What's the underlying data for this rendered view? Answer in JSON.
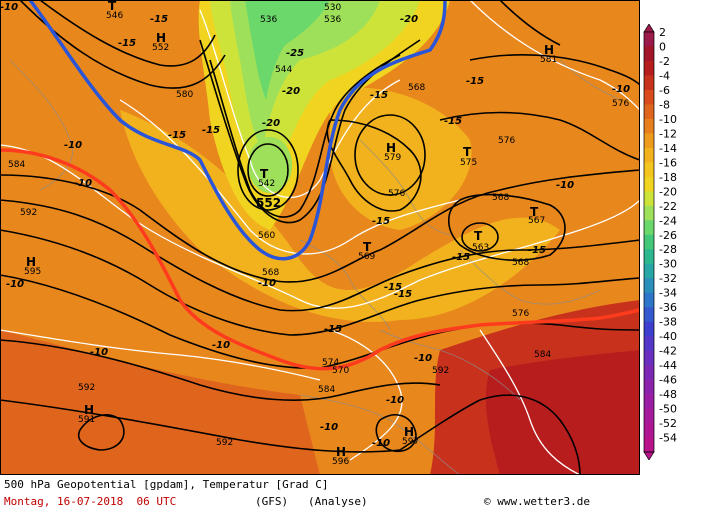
{
  "title": "500 hPa Geopotential [gpdam], Temperatur [Grad C]",
  "date_line": "Montag, 16-07-2018  06 UTC",
  "model_line": "(GFS)   (Analyse)",
  "credit": "www.wetter3.de",
  "legend": {
    "values": [
      "2",
      "0",
      "-2",
      "-4",
      "-6",
      "-8",
      "-10",
      "-12",
      "-14",
      "-16",
      "-18",
      "-20",
      "-22",
      "-24",
      "-26",
      "-28",
      "-30",
      "-32",
      "-34",
      "-36",
      "-38",
      "-40",
      "-42",
      "-44",
      "-46",
      "-48",
      "-50",
      "-52",
      "-54"
    ],
    "colors": [
      "#9c1a4a",
      "#a3162a",
      "#b81d1d",
      "#c8321d",
      "#d94b1c",
      "#e0651c",
      "#e87f1c",
      "#ee9a1c",
      "#f2b21d",
      "#f5c51f",
      "#f0d420",
      "#cde33a",
      "#9fe05a",
      "#6bd86b",
      "#43c87a",
      "#2bb88f",
      "#27a6a6",
      "#2a8fbb",
      "#2e76c9",
      "#3559cf",
      "#3f3fcf",
      "#5237c8",
      "#6a2fbf",
      "#7c28b5",
      "#8c22ab",
      "#9b1da3",
      "#a7199b",
      "#b01692",
      "#b8138a"
    ]
  },
  "map_labels": {
    "geopotential": [
      "546",
      "536",
      "530",
      "536",
      "552",
      "544",
      "580",
      "568",
      "581",
      "576",
      "576",
      "584",
      "592",
      "595",
      "579",
      "575",
      "576",
      "568",
      "567",
      "563",
      "568",
      "542",
      "552",
      "560",
      "568",
      "569",
      "576",
      "584",
      "574",
      "570",
      "584",
      "592",
      "591",
      "592",
      "597",
      "596",
      "592"
    ],
    "temperature": [
      "-15",
      "-15",
      "-20",
      "-25",
      "-20",
      "-15",
      "-15",
      "-20",
      "-15",
      "-15",
      "-10",
      "-10",
      "-15",
      "-10",
      "-10",
      "-10",
      "-15",
      "-15",
      "-15",
      "-10",
      "-15",
      "-10",
      "-10",
      "-15",
      "-10",
      "-10",
      "-15",
      "-10",
      "-10",
      "-10"
    ],
    "pressure_centers": [
      "T",
      "H",
      "H",
      "H",
      "T",
      "T",
      "T",
      "T",
      "H",
      "T",
      "H",
      "H",
      "H"
    ]
  }
}
